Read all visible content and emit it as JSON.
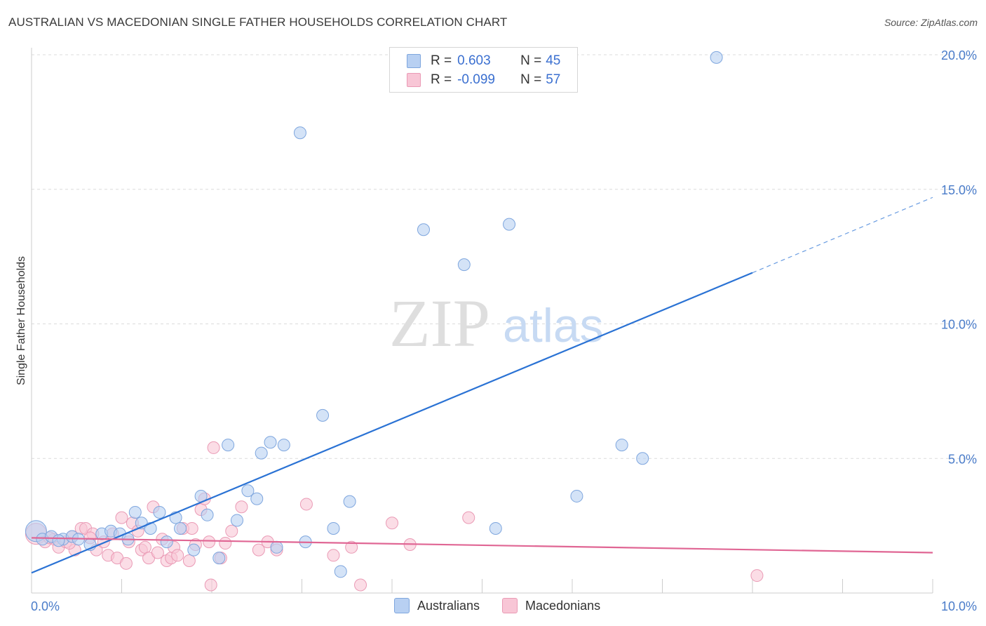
{
  "title": "AUSTRALIAN VS MACEDONIAN SINGLE FATHER HOUSEHOLDS CORRELATION CHART",
  "source": "Source: ZipAtlas.com",
  "watermark": {
    "zip": "ZIP",
    "atlas": "atlas"
  },
  "legend": {
    "australians": {
      "r_label": "R = ",
      "r_value": "0.603",
      "n_label": "N = ",
      "n_value": "45"
    },
    "macedonians": {
      "r_label": "R = ",
      "r_value": "-0.099",
      "n_label": "N = ",
      "n_value": "57"
    }
  },
  "colors": {
    "australians_fill": "#b8d0f2",
    "australians_stroke": "#7ea6de",
    "australians_line": "#2a72d4",
    "macedonians_fill": "#f8c6d6",
    "macedonians_stroke": "#ea9ab5",
    "macedonians_line": "#e06694",
    "tick_text": "#4a7cc9",
    "grid": "#dcdcdc"
  },
  "chart_data": {
    "type": "scatter",
    "title": "AUSTRALIAN VS MACEDONIAN SINGLE FATHER HOUSEHOLDS CORRELATION CHART",
    "xlabel": "",
    "ylabel": "Single Father Households",
    "xlim": [
      0,
      10
    ],
    "ylim": [
      0,
      21
    ],
    "x_tick_labels": [
      "0.0%",
      "10.0%"
    ],
    "y_ticks": [
      5,
      10,
      15,
      20
    ],
    "y_tick_labels": [
      "5.0%",
      "10.0%",
      "15.0%",
      "20.0%"
    ],
    "legend_position": "top-center",
    "series": [
      {
        "name": "Australians",
        "r": 0.603,
        "n": 45,
        "trend": {
          "x0": 0,
          "y0": 0.75,
          "x1": 8.0,
          "y1": 11.9,
          "dashed_to_x": 10.0,
          "dashed_to_y": 14.7
        },
        "points": [
          {
            "x": 0.05,
            "y": 2.3,
            "big": true
          },
          {
            "x": 0.12,
            "y": 2.0
          },
          {
            "x": 0.22,
            "y": 2.1
          },
          {
            "x": 0.35,
            "y": 2.0
          },
          {
            "x": 0.45,
            "y": 2.1
          },
          {
            "x": 0.52,
            "y": 2.0
          },
          {
            "x": 0.65,
            "y": 1.8
          },
          {
            "x": 0.78,
            "y": 2.2
          },
          {
            "x": 0.88,
            "y": 2.3
          },
          {
            "x": 0.98,
            "y": 2.2
          },
          {
            "x": 1.07,
            "y": 2.0
          },
          {
            "x": 1.15,
            "y": 3.0
          },
          {
            "x": 1.22,
            "y": 2.6
          },
          {
            "x": 1.32,
            "y": 2.4
          },
          {
            "x": 1.42,
            "y": 3.0
          },
          {
            "x": 1.5,
            "y": 1.9
          },
          {
            "x": 1.6,
            "y": 2.8
          },
          {
            "x": 1.65,
            "y": 2.4
          },
          {
            "x": 1.8,
            "y": 1.6
          },
          {
            "x": 1.88,
            "y": 3.6
          },
          {
            "x": 1.95,
            "y": 2.9
          },
          {
            "x": 2.08,
            "y": 1.3
          },
          {
            "x": 2.18,
            "y": 5.5
          },
          {
            "x": 2.28,
            "y": 2.7
          },
          {
            "x": 2.4,
            "y": 3.8
          },
          {
            "x": 2.5,
            "y": 3.5
          },
          {
            "x": 2.55,
            "y": 5.2
          },
          {
            "x": 2.65,
            "y": 5.6
          },
          {
            "x": 2.72,
            "y": 1.7
          },
          {
            "x": 2.8,
            "y": 5.5
          },
          {
            "x": 2.98,
            "y": 17.1
          },
          {
            "x": 3.04,
            "y": 1.9
          },
          {
            "x": 3.23,
            "y": 6.6
          },
          {
            "x": 3.35,
            "y": 2.4
          },
          {
            "x": 3.43,
            "y": 0.8
          },
          {
            "x": 3.53,
            "y": 3.4
          },
          {
            "x": 4.35,
            "y": 13.5
          },
          {
            "x": 4.8,
            "y": 12.2
          },
          {
            "x": 5.15,
            "y": 2.4
          },
          {
            "x": 5.3,
            "y": 13.7
          },
          {
            "x": 6.05,
            "y": 3.6
          },
          {
            "x": 6.55,
            "y": 5.5
          },
          {
            "x": 6.78,
            "y": 5.0
          },
          {
            "x": 7.6,
            "y": 19.9
          },
          {
            "x": 0.3,
            "y": 1.95
          }
        ]
      },
      {
        "name": "Macedonians",
        "r": -0.099,
        "n": 57,
        "trend": {
          "x0": 0,
          "y0": 2.05,
          "x1": 10.0,
          "y1": 1.5
        },
        "points": [
          {
            "x": 0.05,
            "y": 2.2,
            "big": true
          },
          {
            "x": 0.15,
            "y": 1.9
          },
          {
            "x": 0.25,
            "y": 2.0
          },
          {
            "x": 0.3,
            "y": 1.7
          },
          {
            "x": 0.38,
            "y": 1.9
          },
          {
            "x": 0.45,
            "y": 2.1
          },
          {
            "x": 0.48,
            "y": 1.6
          },
          {
            "x": 0.55,
            "y": 2.4
          },
          {
            "x": 0.6,
            "y": 2.4
          },
          {
            "x": 0.68,
            "y": 2.2
          },
          {
            "x": 0.72,
            "y": 1.6
          },
          {
            "x": 0.8,
            "y": 1.9
          },
          {
            "x": 0.85,
            "y": 1.4
          },
          {
            "x": 0.9,
            "y": 2.2
          },
          {
            "x": 0.95,
            "y": 1.3
          },
          {
            "x": 1.0,
            "y": 2.8
          },
          {
            "x": 1.05,
            "y": 1.1
          },
          {
            "x": 1.12,
            "y": 2.6
          },
          {
            "x": 1.18,
            "y": 2.3
          },
          {
            "x": 1.22,
            "y": 1.6
          },
          {
            "x": 1.26,
            "y": 1.7
          },
          {
            "x": 1.3,
            "y": 1.3
          },
          {
            "x": 1.35,
            "y": 3.2
          },
          {
            "x": 1.4,
            "y": 1.5
          },
          {
            "x": 1.45,
            "y": 2.0
          },
          {
            "x": 1.5,
            "y": 1.2
          },
          {
            "x": 1.55,
            "y": 1.3
          },
          {
            "x": 1.58,
            "y": 1.7
          },
          {
            "x": 1.62,
            "y": 1.4
          },
          {
            "x": 1.68,
            "y": 2.4
          },
          {
            "x": 1.75,
            "y": 1.2
          },
          {
            "x": 1.78,
            "y": 2.4
          },
          {
            "x": 1.82,
            "y": 1.8
          },
          {
            "x": 1.88,
            "y": 3.1
          },
          {
            "x": 1.92,
            "y": 3.5
          },
          {
            "x": 1.97,
            "y": 1.9
          },
          {
            "x": 1.99,
            "y": 0.3
          },
          {
            "x": 2.02,
            "y": 5.4
          },
          {
            "x": 2.1,
            "y": 1.3
          },
          {
            "x": 2.22,
            "y": 2.3
          },
          {
            "x": 2.33,
            "y": 3.2
          },
          {
            "x": 2.52,
            "y": 1.6
          },
          {
            "x": 2.62,
            "y": 1.9
          },
          {
            "x": 2.72,
            "y": 1.6
          },
          {
            "x": 3.05,
            "y": 3.3
          },
          {
            "x": 3.35,
            "y": 1.4
          },
          {
            "x": 3.55,
            "y": 1.7
          },
          {
            "x": 3.65,
            "y": 0.3
          },
          {
            "x": 4.0,
            "y": 2.6
          },
          {
            "x": 4.2,
            "y": 1.8
          },
          {
            "x": 4.85,
            "y": 2.8
          },
          {
            "x": 8.05,
            "y": 0.65
          },
          {
            "x": 0.2,
            "y": 2.05
          },
          {
            "x": 0.42,
            "y": 1.85
          },
          {
            "x": 0.65,
            "y": 2.05
          },
          {
            "x": 1.08,
            "y": 1.9
          },
          {
            "x": 2.15,
            "y": 1.85
          }
        ]
      }
    ]
  },
  "bottom_legend": [
    "Australians",
    "Macedonians"
  ]
}
